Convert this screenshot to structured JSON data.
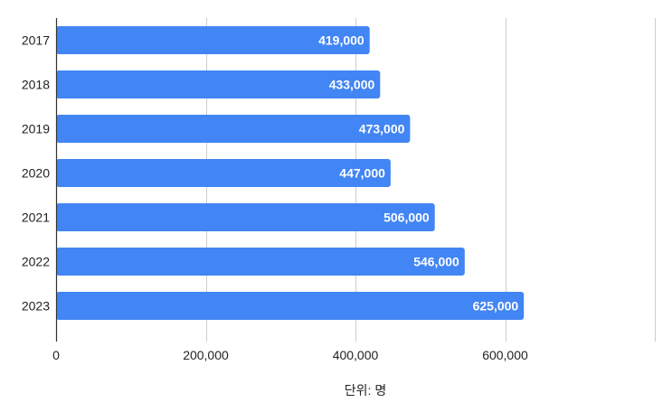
{
  "chart_data": {
    "type": "bar",
    "orientation": "horizontal",
    "categories": [
      "2017",
      "2018",
      "2019",
      "2020",
      "2021",
      "2022",
      "2023"
    ],
    "values": [
      419000,
      433000,
      473000,
      447000,
      506000,
      546000,
      625000
    ],
    "value_labels": [
      "419,000",
      "433,000",
      "473,000",
      "447,000",
      "506,000",
      "546,000",
      "625,000"
    ],
    "x_ticks": [
      0,
      200000,
      400000,
      600000,
      800000
    ],
    "x_tick_labels": [
      "0",
      "200,000",
      "400,000",
      "600,000",
      ""
    ],
    "xlim": [
      0,
      800000
    ],
    "xlabel": "단위: 명",
    "ylabel": "",
    "title": "",
    "grid": true,
    "bar_color": "#4285f4",
    "grid_color": "#cccccc",
    "axis_color": "#333333"
  }
}
